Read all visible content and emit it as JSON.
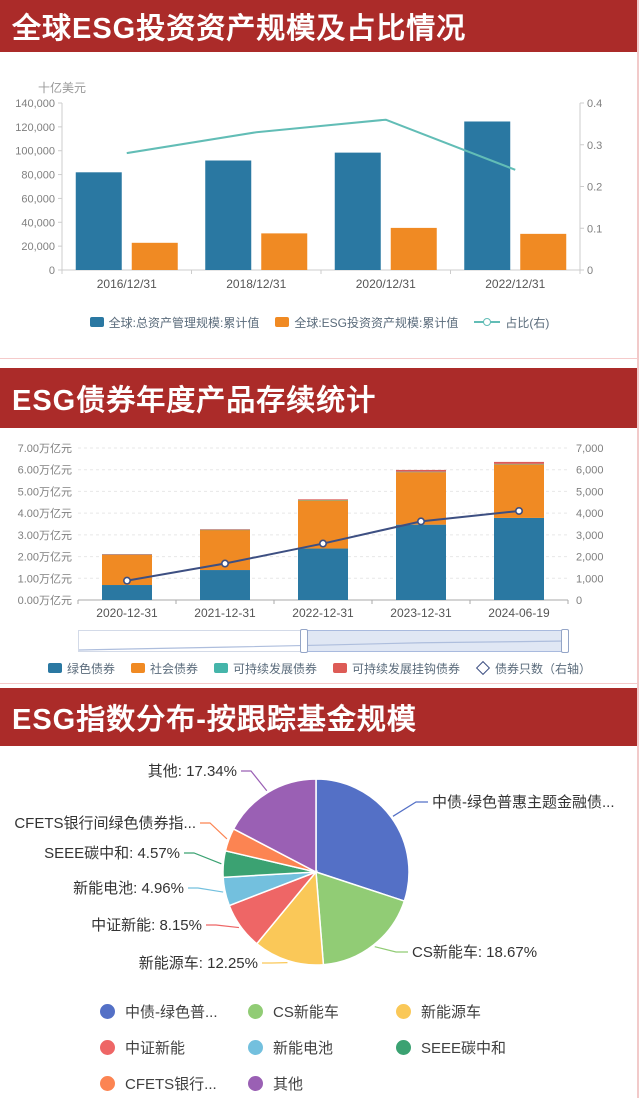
{
  "page": {
    "accent_red": "#ab2b29"
  },
  "sections": [
    {
      "title": "全球ESG投资资产规模及占比情况"
    },
    {
      "title": "ESG债券年度产品存续统计"
    },
    {
      "title": "ESG指数分布-按跟踪基金规模"
    }
  ],
  "chart_data": [
    {
      "type": "bar",
      "title": "全球ESG投资资产规模及占比情况",
      "unit_left": "十亿美元",
      "categories": [
        "2016/12/31",
        "2018/12/31",
        "2020/12/31",
        "2022/12/31"
      ],
      "series": [
        {
          "name": "全球:总资产管理规模:累计值",
          "type": "bar",
          "color": "#2a78a2",
          "values": [
            81900,
            91800,
            98400,
            124500
          ]
        },
        {
          "name": "全球:ESG投资资产规模:累计值",
          "type": "bar",
          "color": "#f08a23",
          "values": [
            22800,
            30700,
            35300,
            30300
          ]
        },
        {
          "name": "占比(右)",
          "type": "line",
          "axis": "right",
          "color": "#62bdb6",
          "values": [
            0.28,
            0.33,
            0.36,
            0.24
          ]
        }
      ],
      "ylim_left": [
        0,
        140000
      ],
      "yticks_left": [
        "0",
        "20,000",
        "40,000",
        "60,000",
        "80,000",
        "100,000",
        "120,000",
        "140,000"
      ],
      "ylim_right": [
        0,
        0.4
      ],
      "yticks_right": [
        "0",
        "0.1",
        "0.2",
        "0.3",
        "0.4"
      ],
      "grid": false,
      "legend_position": "bottom"
    },
    {
      "type": "bar",
      "stacked": true,
      "title": "ESG债券年度产品存续统计",
      "categories": [
        "2020-12-31",
        "2021-12-31",
        "2022-12-31",
        "2023-12-31",
        "2024-06-19"
      ],
      "series": [
        {
          "name": "绿色债券",
          "type": "bar",
          "stack": true,
          "color": "#2a78a2",
          "values": [
            0.69,
            1.38,
            2.37,
            3.47,
            3.78
          ]
        },
        {
          "name": "社会债券",
          "type": "bar",
          "stack": true,
          "color": "#f08a23",
          "values": [
            1.4,
            1.85,
            2.22,
            2.42,
            2.47
          ]
        },
        {
          "name": "可持续发展债券",
          "type": "bar",
          "stack": true,
          "color": "#45b5aa",
          "values": [
            0.01,
            0.01,
            0.02,
            0.02,
            0.02
          ]
        },
        {
          "name": "可持续发展挂钩债券",
          "type": "bar",
          "stack": true,
          "color": "#dd5b56",
          "values": [
            0.01,
            0.02,
            0.03,
            0.08,
            0.09
          ]
        },
        {
          "name": "债券只数（右轴）",
          "type": "line",
          "axis": "right",
          "color": "#3d4f82",
          "values": [
            890,
            1680,
            2600,
            3620,
            4100
          ]
        }
      ],
      "unit_left": "万亿元",
      "ylim_left": [
        0,
        7
      ],
      "yticks_left": [
        "0.00万亿元",
        "1.00万亿元",
        "2.00万亿元",
        "3.00万亿元",
        "4.00万亿元",
        "5.00万亿元",
        "6.00万亿元",
        "7.00万亿元"
      ],
      "ylim_right": [
        0,
        7000
      ],
      "yticks_right": [
        "0",
        "1,000",
        "2,000",
        "3,000",
        "4,000",
        "5,000",
        "6,000",
        "7,000"
      ],
      "grid": true,
      "legend_position": "bottom",
      "datazoom": {
        "start_pct": 46,
        "end_pct": 100
      }
    },
    {
      "type": "pie",
      "title": "ESG指数分布-按跟踪基金规模",
      "legend_position": "bottom",
      "slices": [
        {
          "callout": "中债-绿色普惠主题金融债...",
          "legend": "中债-绿色普...",
          "value": 30.06,
          "color": "#5470c6"
        },
        {
          "callout": "CS新能车: 18.67%",
          "legend": "CS新能车",
          "value": 18.67,
          "color": "#91cc75"
        },
        {
          "callout": "新能源车: 12.25%",
          "legend": "新能源车",
          "value": 12.25,
          "color": "#fac858"
        },
        {
          "callout": "中证新能: 8.15%",
          "legend": "中证新能",
          "value": 8.15,
          "color": "#ee6666"
        },
        {
          "callout": "新能电池: 4.96%",
          "legend": "新能电池",
          "value": 4.96,
          "color": "#73c0de"
        },
        {
          "callout": "SEEE碳中和: 4.57%",
          "legend": "SEEE碳中和",
          "value": 4.57,
          "color": "#3ba272"
        },
        {
          "callout": "CFETS银行间绿色债券指...",
          "legend": "CFETS银行...",
          "value": 4.0,
          "color": "#fc8452"
        },
        {
          "callout": "其他: 17.34%",
          "legend": "其他",
          "value": 17.34,
          "color": "#9a60b4"
        }
      ]
    }
  ]
}
